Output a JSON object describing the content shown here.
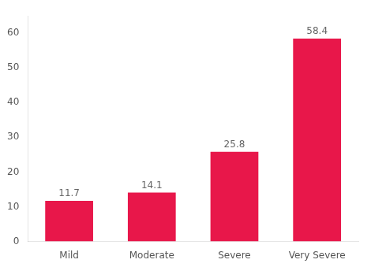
{
  "chart_data": {
    "type": "bar",
    "categories": [
      "Mild",
      "Moderate",
      "Severe",
      "Very Severe"
    ],
    "values": [
      11.7,
      14.1,
      25.8,
      58.4
    ],
    "color": "#e8174a",
    "ylim": [
      0,
      65
    ],
    "yticks": [
      0,
      10,
      20,
      30,
      40,
      50,
      60
    ],
    "grid": false,
    "data_labels": true
  }
}
